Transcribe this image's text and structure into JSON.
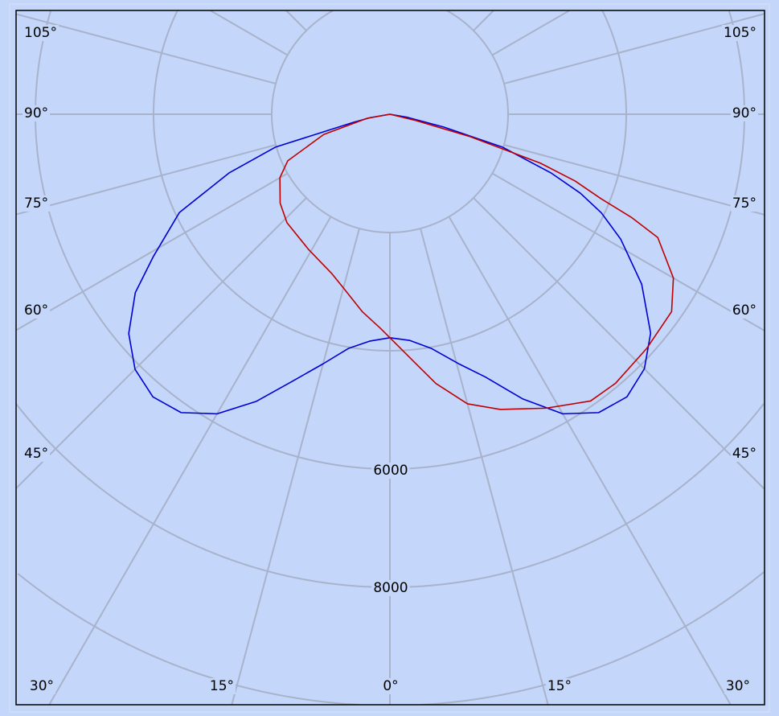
{
  "chart_data": {
    "type": "polar",
    "title": "",
    "angle_unit": "degrees",
    "zero_direction": "down",
    "radial_unit": "cd",
    "radial_grid": [
      2000,
      4000,
      6000,
      8000,
      10000,
      12000
    ],
    "radial_tick_labels": [
      "6000",
      "8000"
    ],
    "angle_grid_step": 15,
    "angle_tick_labels": {
      "left": [
        "105°",
        "90°",
        "75°",
        "60°",
        "45°"
      ],
      "right": [
        "105°",
        "90°",
        "75°",
        "60°",
        "45°"
      ],
      "bottom": [
        "30°",
        "15°",
        "0°",
        "15°",
        "30°"
      ]
    },
    "grid": true,
    "background": "#c4d6fa",
    "series": [
      {
        "color": "#0000d4",
        "left": [
          [
            0,
            3780
          ],
          [
            5,
            3850
          ],
          [
            10,
            4020
          ],
          [
            15,
            4370
          ],
          [
            20,
            4800
          ],
          [
            25,
            5360
          ],
          [
            30,
            5850
          ],
          [
            35,
            6160
          ],
          [
            40,
            6240
          ],
          [
            45,
            6100
          ],
          [
            50,
            5770
          ],
          [
            55,
            5260
          ],
          [
            59,
            4670
          ],
          [
            65,
            3930
          ],
          [
            70,
            2890
          ],
          [
            74,
            2010
          ],
          [
            77.5,
            630
          ],
          [
            80,
            350
          ],
          [
            90,
            0
          ]
        ],
        "right": [
          [
            0,
            3780
          ],
          [
            5,
            3840
          ],
          [
            10,
            4020
          ],
          [
            15.6,
            4390
          ],
          [
            20,
            4730
          ],
          [
            25,
            5310
          ],
          [
            30,
            5850
          ],
          [
            35,
            6160
          ],
          [
            40,
            6240
          ],
          [
            45,
            6090
          ],
          [
            50,
            5760
          ],
          [
            56,
            5140
          ],
          [
            61.6,
            4440
          ],
          [
            65,
            3950
          ],
          [
            67.5,
            3490
          ],
          [
            70,
            2900
          ],
          [
            73.7,
            1990
          ],
          [
            76.6,
            940
          ],
          [
            80,
            300
          ],
          [
            90,
            0
          ]
        ]
      },
      {
        "color": "#c00000",
        "left": [
          [
            0,
            3780
          ],
          [
            2.6,
            3620
          ],
          [
            8,
            3370
          ],
          [
            15,
            3040
          ],
          [
            20,
            2870
          ],
          [
            31,
            2670
          ],
          [
            43.5,
            2530
          ],
          [
            51,
            2390
          ],
          [
            60,
            2150
          ],
          [
            65.5,
            1900
          ],
          [
            73,
            1170
          ],
          [
            80,
            390
          ],
          [
            90,
            0
          ]
        ],
        "right": [
          [
            0,
            3780
          ],
          [
            5.6,
            4210
          ],
          [
            9.7,
            4620
          ],
          [
            15,
            5070
          ],
          [
            20.5,
            5330
          ],
          [
            28,
            5630
          ],
          [
            35,
            5920
          ],
          [
            40,
            5940
          ],
          [
            47.7,
            5880
          ],
          [
            55,
            5820
          ],
          [
            60,
            5540
          ],
          [
            65.3,
            4990
          ],
          [
            66.9,
            4440
          ],
          [
            68.2,
            3850
          ],
          [
            70.2,
            3330
          ],
          [
            72,
            2680
          ],
          [
            74.4,
            1410
          ],
          [
            76.4,
            460
          ],
          [
            90,
            0
          ]
        ]
      }
    ]
  }
}
